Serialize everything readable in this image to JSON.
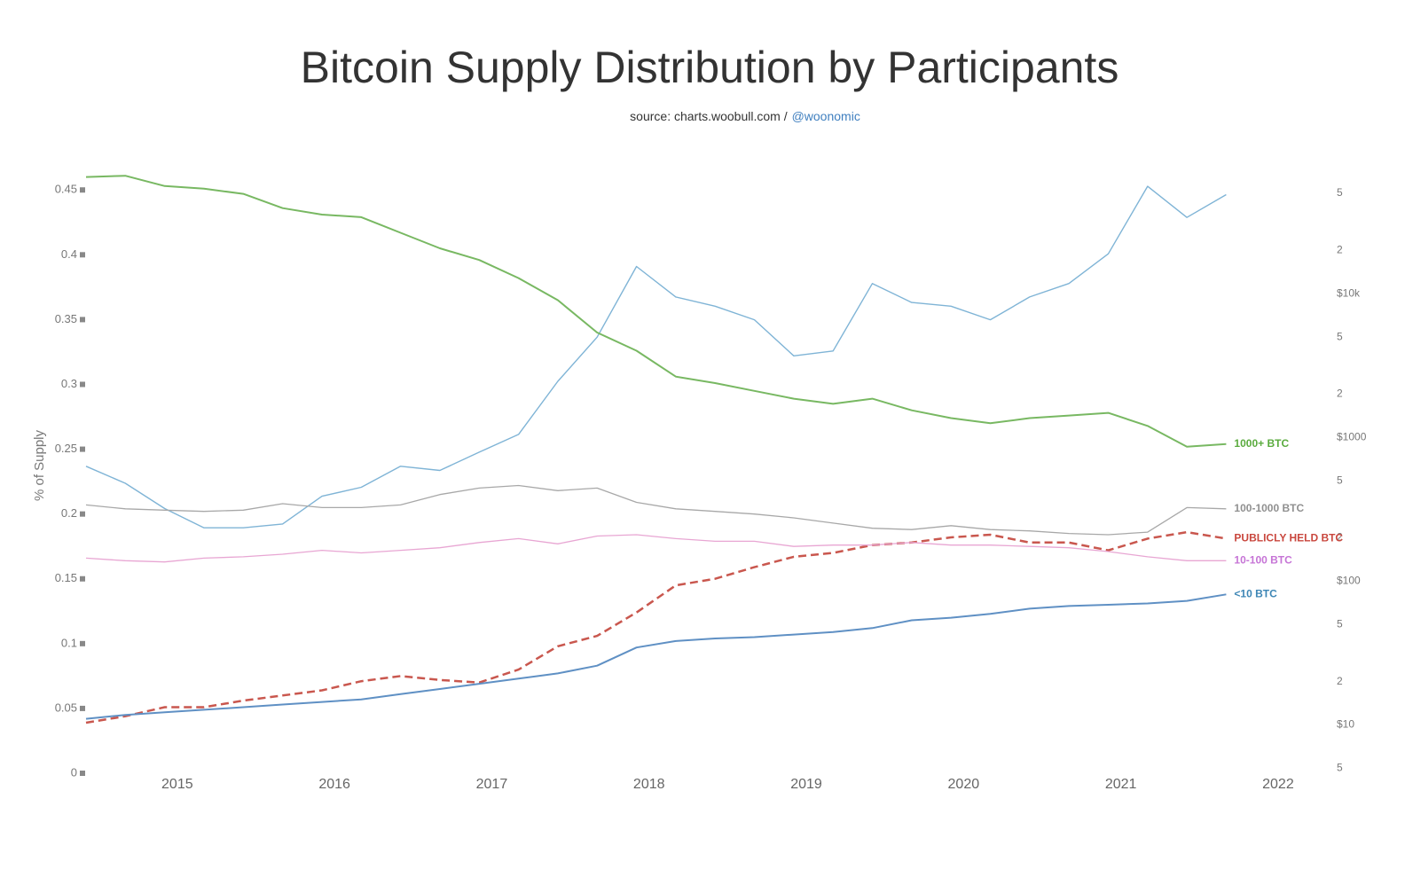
{
  "chart_data": {
    "type": "line",
    "title": "Bitcoin Supply Distribution by Participants",
    "subtitle": "source: charts.woobull.com /",
    "subtitle_handle": "@woonomic",
    "y_label": "% of Supply",
    "x": [
      2014.42,
      2014.67,
      2014.92,
      2015.17,
      2015.42,
      2015.67,
      2015.92,
      2016.17,
      2016.42,
      2016.67,
      2016.92,
      2017.17,
      2017.42,
      2017.67,
      2017.92,
      2018.17,
      2018.42,
      2018.67,
      2018.92,
      2019.17,
      2019.42,
      2019.67,
      2019.92,
      2020.17,
      2020.42,
      2020.67,
      2020.92,
      2021.17,
      2021.42,
      2021.67
    ],
    "xlim": [
      2014.42,
      2022.15
    ],
    "xticks": [
      2015,
      2016,
      2017,
      2018,
      2019,
      2020,
      2021,
      2022
    ],
    "ylim": [
      0,
      0.47
    ],
    "yticks": [
      0,
      0.05,
      0.1,
      0.15,
      0.2,
      0.25,
      0.3,
      0.35,
      0.4,
      0.45
    ],
    "y2lim": [
      4.6,
      80000
    ],
    "y2log": true,
    "y2ticks": [
      5,
      {
        "value": 10,
        "label": "$10"
      },
      {
        "value": 20,
        "label": "2"
      },
      {
        "value": 50,
        "label": "5"
      },
      {
        "value": 100,
        "label": "$100"
      },
      {
        "value": 200,
        "label": "2"
      },
      {
        "value": 500,
        "label": "5"
      },
      {
        "value": 1000,
        "label": "$1000"
      },
      {
        "value": 2000,
        "label": "2"
      },
      {
        "value": 5000,
        "label": "5"
      },
      {
        "value": 10000,
        "label": "$10k"
      },
      {
        "value": 20000,
        "label": "2"
      },
      {
        "value": 50000,
        "label": "5"
      }
    ],
    "grid": false,
    "series": [
      {
        "name": "1000+ BTC",
        "color": "#78b862",
        "label_color": "#5aab3e",
        "width": 2,
        "values": [
          0.46,
          0.461,
          0.453,
          0.451,
          0.447,
          0.436,
          0.431,
          0.429,
          0.417,
          0.405,
          0.396,
          0.382,
          0.365,
          0.34,
          0.326,
          0.306,
          0.301,
          0.295,
          0.289,
          0.285,
          0.289,
          0.28,
          0.274,
          0.27,
          0.274,
          0.276,
          0.278,
          0.268,
          0.252,
          0.254
        ]
      },
      {
        "name": "100-1000 BTC",
        "color": "#a8a8a8",
        "label_color": "#909090",
        "width": 1.3,
        "values": [
          0.207,
          0.204,
          0.203,
          0.202,
          0.203,
          0.208,
          0.205,
          0.205,
          0.207,
          0.215,
          0.22,
          0.222,
          0.218,
          0.22,
          0.209,
          0.204,
          0.202,
          0.2,
          0.197,
          0.193,
          0.189,
          0.188,
          0.191,
          0.188,
          0.187,
          0.185,
          0.184,
          0.186,
          0.205,
          0.204
        ]
      },
      {
        "name": "PUBLICLY HELD BTC",
        "color": "#c9574e",
        "label_color": "#c9473e",
        "width": 2.5,
        "dash": true,
        "values": [
          0.039,
          0.044,
          0.051,
          0.051,
          0.056,
          0.06,
          0.064,
          0.071,
          0.075,
          0.072,
          0.07,
          0.08,
          0.098,
          0.106,
          0.124,
          0.145,
          0.15,
          0.159,
          0.167,
          0.17,
          0.176,
          0.178,
          0.182,
          0.184,
          0.178,
          0.178,
          0.172,
          0.181,
          0.186,
          0.181
        ]
      },
      {
        "name": "10-100 BTC",
        "color": "#e8a6d3",
        "label_color": "#c674d6",
        "width": 1.3,
        "values": [
          0.166,
          0.164,
          0.163,
          0.166,
          0.167,
          0.169,
          0.172,
          0.17,
          0.172,
          0.174,
          0.178,
          0.181,
          0.177,
          0.183,
          0.184,
          0.181,
          0.179,
          0.179,
          0.175,
          0.176,
          0.176,
          0.178,
          0.176,
          0.176,
          0.175,
          0.174,
          0.171,
          0.167,
          0.164,
          0.164
        ]
      },
      {
        "name": "<10 BTC",
        "color": "#5f90c4",
        "label_color": "#3d86b5",
        "width": 2,
        "values": [
          0.042,
          0.045,
          0.047,
          0.049,
          0.051,
          0.053,
          0.055,
          0.057,
          0.061,
          0.065,
          0.069,
          0.073,
          0.077,
          0.083,
          0.097,
          0.102,
          0.104,
          0.105,
          0.107,
          0.109,
          0.112,
          0.118,
          0.12,
          0.123,
          0.127,
          0.129,
          0.13,
          0.131,
          0.133,
          0.138
        ]
      },
      {
        "color": "#7fb4d6",
        "width": 1.4,
        "axis": "y2",
        "values": [
          630,
          480,
          320,
          235,
          235,
          250,
          390,
          450,
          630,
          590,
          790,
          1050,
          2460,
          4990,
          15500,
          9500,
          8200,
          6600,
          3700,
          4000,
          11800,
          8700,
          8200,
          6600,
          9500,
          11800,
          19000,
          56000,
          34000,
          49000
        ]
      }
    ]
  }
}
